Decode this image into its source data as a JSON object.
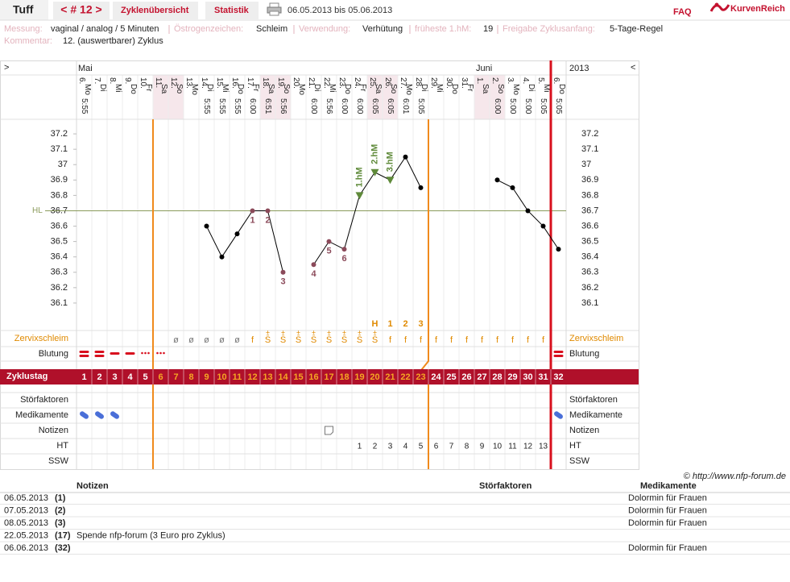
{
  "header": {
    "user": "Tuff",
    "cycle_nav": "< # 12 >",
    "tabs": [
      "Zyklenübersicht",
      "Statistik"
    ],
    "period": "06.05.2013 bis 05.06.2013",
    "faq": "FAQ",
    "brand": "KurvenReich"
  },
  "info": {
    "fields": [
      {
        "label": "Messung:",
        "value": "vaginal / analog / 5 Minuten"
      },
      {
        "label": "Östrogenzeichen:",
        "value": "Schleim"
      },
      {
        "label": "Verwendung:",
        "value": "Verhütung"
      },
      {
        "label": "früheste 1.hM:",
        "value": "19"
      },
      {
        "label": "Freigabe Zyklusanfang:",
        "value": "5-Tage-Regel"
      }
    ],
    "comment": {
      "label": "Kommentar:",
      "value": "12. (auswertbarer) Zyklus"
    }
  },
  "chart_data": {
    "type": "line",
    "nav": {
      "left": ">",
      "right": "<"
    },
    "months": [
      "Mai",
      "Juni"
    ],
    "year": "2013",
    "categories": [
      "6.",
      "7.",
      "8.",
      "9.",
      "10.",
      "11.",
      "12.",
      "13.",
      "14.",
      "15.",
      "16.",
      "17.",
      "18.",
      "19.",
      "20.",
      "21.",
      "22.",
      "23.",
      "24.",
      "25.",
      "26.",
      "27.",
      "28.",
      "29.",
      "30.",
      "31.",
      "1.",
      "2.",
      "3.",
      "4.",
      "5.",
      "6."
    ],
    "weekdays": [
      "Mo",
      "Di",
      "Mi",
      "Do",
      "Fr",
      "Sa",
      "So",
      "Mo",
      "Di",
      "Mi",
      "Do",
      "Fr",
      "Sa",
      "So",
      "Mo",
      "Di",
      "Mi",
      "Do",
      "Fr",
      "Sa",
      "So",
      "Mo",
      "Di",
      "Mi",
      "Do",
      "Fr",
      "Sa",
      "So",
      "Mo",
      "Di",
      "Mi",
      "Do"
    ],
    "times": [
      "5:55",
      null,
      null,
      null,
      null,
      null,
      null,
      null,
      "5:55",
      "5:55",
      "5:55",
      "6:00",
      "6:51",
      "5:56",
      null,
      "6:00",
      "5:56",
      "6:00",
      "6:00",
      "6:05",
      "6:05",
      "6:01",
      "5:05",
      null,
      null,
      null,
      null,
      "6:00",
      "5:00",
      "5:00",
      "5:05",
      "5:05"
    ],
    "series": [
      {
        "color": "#000000",
        "values": [
          null,
          null,
          null,
          null,
          null,
          null,
          null,
          null,
          36.6,
          36.4,
          36.55,
          36.7,
          36.7,
          36.3,
          null,
          36.35,
          36.5,
          36.45,
          36.8,
          36.95,
          36.9,
          37.05,
          36.85,
          null,
          null,
          null,
          null,
          36.9,
          36.85,
          36.7,
          36.6,
          36.45
        ]
      }
    ],
    "point_labels": [
      null,
      null,
      null,
      null,
      null,
      null,
      null,
      null,
      null,
      null,
      null,
      1,
      2,
      3,
      null,
      4,
      5,
      6,
      null,
      null,
      null,
      null,
      null,
      null,
      null,
      null,
      null,
      null,
      null,
      null,
      null,
      null
    ],
    "hm_labels": [
      null,
      null,
      null,
      null,
      null,
      null,
      null,
      null,
      null,
      null,
      null,
      null,
      null,
      null,
      null,
      null,
      null,
      null,
      "1.hM",
      "2.hM",
      "3.hM",
      null,
      null,
      null,
      null,
      null,
      null,
      null,
      null,
      null,
      null,
      null
    ],
    "ylim": [
      36.0,
      37.3
    ],
    "yticks": [
      36.1,
      36.2,
      36.3,
      36.4,
      36.5,
      36.6,
      36.7,
      36.8,
      36.9,
      37,
      37.1,
      37.2
    ],
    "coverline": {
      "value": 36.7,
      "label": "HL"
    },
    "rows": {
      "zervix": {
        "label": "Zervixschleim",
        "values": [
          null,
          null,
          null,
          null,
          null,
          null,
          "ø",
          "ø",
          "ø",
          "ø",
          "ø",
          "f",
          "S̄",
          "S̄",
          "S̄",
          "S̄",
          "S̄",
          "S̄",
          "S̄",
          "S̄",
          "f",
          "f",
          "f",
          "f",
          "f",
          "f",
          "f",
          "f",
          "f",
          "f",
          "f",
          null
        ],
        "plus": [
          null,
          null,
          null,
          null,
          null,
          null,
          null,
          null,
          null,
          null,
          null,
          null,
          "+",
          "+",
          "+",
          "+",
          "+",
          "+",
          "+",
          "+",
          null,
          null,
          null,
          null,
          null,
          null,
          null,
          null,
          null,
          null,
          null,
          null
        ],
        "peak": [
          null,
          null,
          null,
          null,
          null,
          null,
          null,
          null,
          null,
          null,
          null,
          null,
          null,
          null,
          null,
          null,
          null,
          null,
          null,
          "H",
          "1",
          "2",
          "3",
          null,
          null,
          null,
          null,
          null,
          null,
          null,
          null,
          null
        ]
      },
      "blutung": {
        "label": "Blutung"
      },
      "zyklustag": {
        "label": "Zyklustag",
        "values": [
          1,
          2,
          3,
          4,
          5,
          6,
          7,
          8,
          9,
          10,
          11,
          12,
          13,
          14,
          15,
          16,
          17,
          18,
          19,
          20,
          21,
          22,
          23,
          24,
          25,
          26,
          27,
          28,
          29,
          30,
          31,
          32
        ]
      },
      "stoerfaktoren": {
        "label": "Störfaktoren"
      },
      "medikamente": {
        "label": "Medikamente"
      },
      "notizen": {
        "label": "Notizen"
      },
      "ht": {
        "label": "HT",
        "values": [
          null,
          null,
          null,
          null,
          null,
          null,
          null,
          null,
          null,
          null,
          null,
          null,
          null,
          null,
          null,
          null,
          null,
          null,
          1,
          2,
          3,
          4,
          5,
          6,
          7,
          8,
          9,
          10,
          11,
          12,
          13,
          null
        ]
      },
      "ssw": {
        "label": "SSW"
      }
    },
    "credit": "© http://www.nfp-forum.de"
  },
  "notes_table": {
    "columns": [
      "Notizen",
      "Störfaktoren",
      "Medikamente"
    ],
    "rows": [
      {
        "date": "06.05.2013",
        "day": "(1)",
        "medication": "Dolormin für Frauen"
      },
      {
        "date": "07.05.2013",
        "day": "(2)",
        "medication": "Dolormin für Frauen"
      },
      {
        "date": "08.05.2013",
        "day": "(3)",
        "medication": "Dolormin für Frauen"
      },
      {
        "date": "22.05.2013",
        "day": "(17)",
        "note": "Spende nfp-forum (3 Euro pro Zyklus)"
      },
      {
        "date": "06.06.2013",
        "day": "(32)",
        "medication": "Dolormin für Frauen"
      }
    ]
  }
}
